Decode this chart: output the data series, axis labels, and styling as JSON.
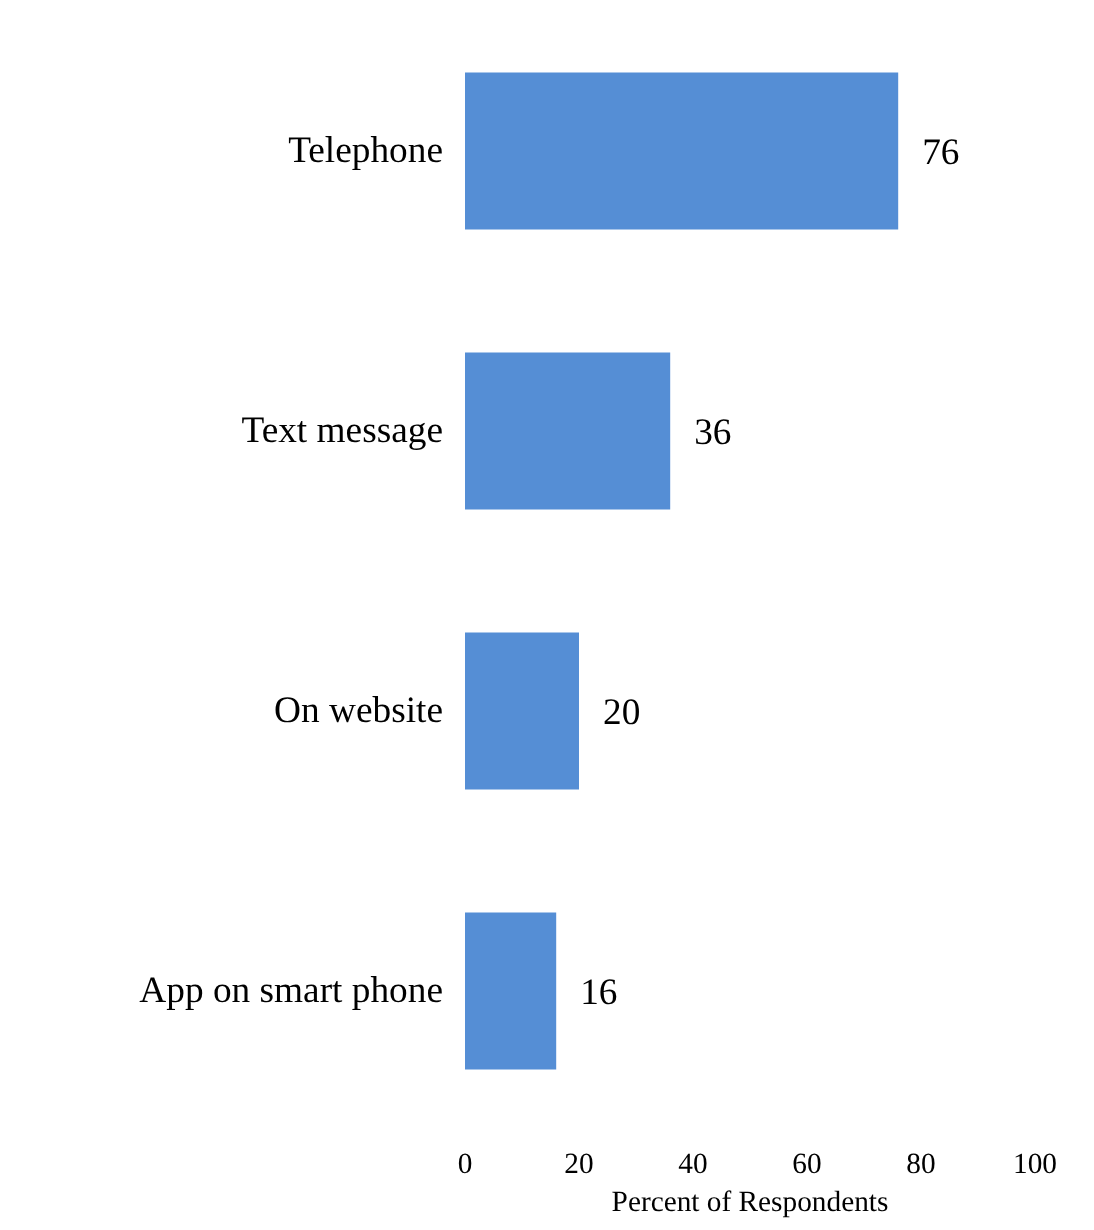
{
  "chart_data": {
    "type": "bar",
    "orientation": "horizontal",
    "xlabel": "Percent of Respondents",
    "categories": [
      "Telephone",
      "Text message",
      "On website",
      "App on smart phone"
    ],
    "values": [
      76,
      36,
      20,
      16
    ],
    "color": "#558ed5",
    "data_labels": true,
    "grid": false,
    "xlim": [
      0,
      100
    ],
    "xticks": [
      0,
      20,
      40,
      60,
      80,
      100
    ]
  }
}
